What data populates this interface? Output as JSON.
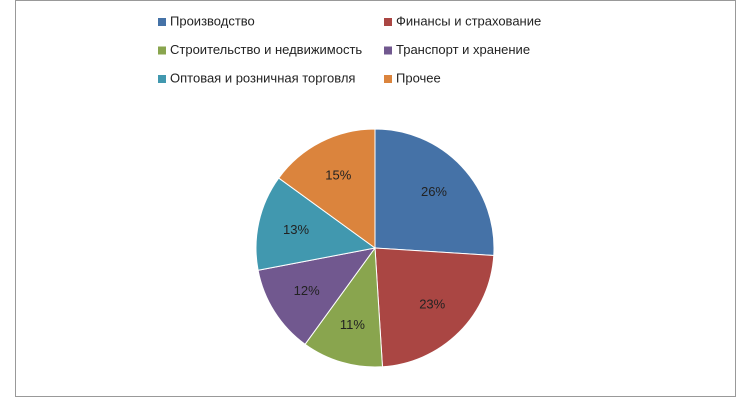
{
  "chart_data": {
    "type": "pie",
    "categories": [
      "Производство",
      "Финансы и страхование",
      "Строительство и недвижимость",
      "Транспорт и хранение",
      "Оптовая и розничная торговля",
      "Прочее"
    ],
    "values": [
      26,
      23,
      11,
      12,
      13,
      15
    ],
    "value_labels": [
      "26%",
      "23%",
      "11%",
      "12%",
      "13%",
      "15%"
    ],
    "colors": [
      "#4572a7",
      "#aa4643",
      "#89a54e",
      "#71588f",
      "#4198af",
      "#db843d"
    ],
    "legend": "top"
  }
}
